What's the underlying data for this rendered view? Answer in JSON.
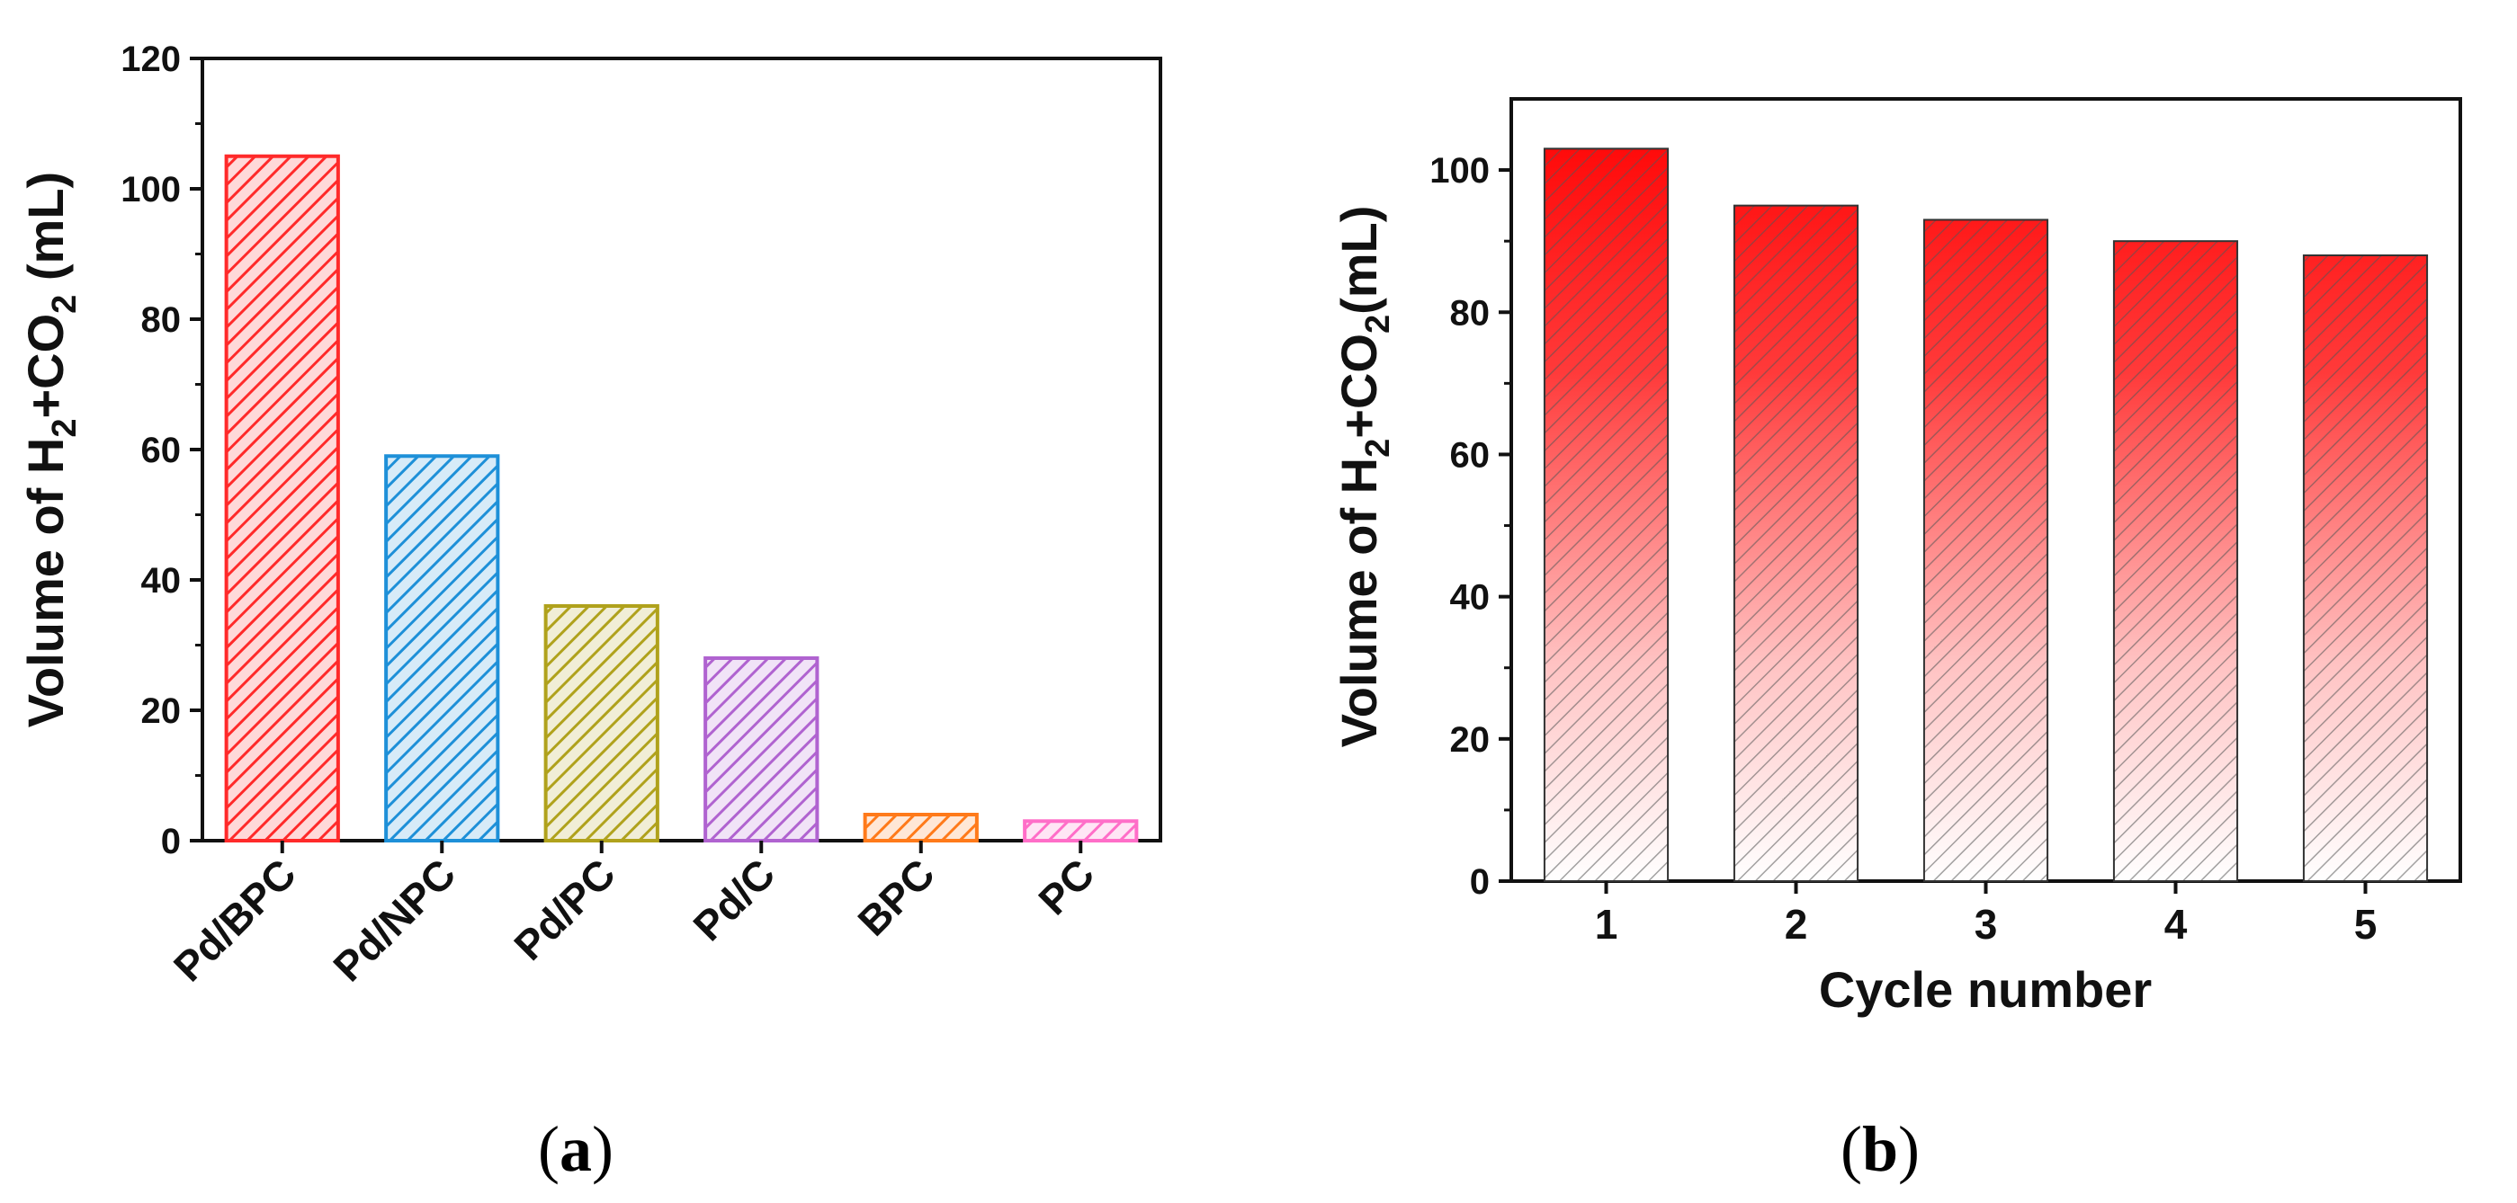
{
  "chart_data": [
    {
      "type": "bar",
      "panel": "a",
      "categories": [
        "Pd/BPC",
        "Pd/NPC",
        "Pd/PC",
        "Pd/C",
        "BPC",
        "PC"
      ],
      "values": [
        105,
        59,
        36,
        28,
        4,
        3
      ],
      "colors": [
        "#ff2a2a",
        "#1e90d8",
        "#b0a21c",
        "#b063d0",
        "#ff7a1a",
        "#ff6ec8"
      ],
      "title": "",
      "xlabel": "",
      "ylabel": {
        "prefix": "Volume of H",
        "sub1": "2",
        "mid": "+CO",
        "sub2": "2",
        "suffix": " (mL)"
      },
      "ylim": [
        0,
        120
      ],
      "yticks": [
        "0",
        "20",
        "40",
        "60",
        "80",
        "100",
        "120"
      ],
      "grid": false
    },
    {
      "type": "bar",
      "panel": "b",
      "categories": [
        "1",
        "2",
        "3",
        "4",
        "5"
      ],
      "values": [
        103,
        95,
        93,
        90,
        88
      ],
      "colors": [
        "#ff0000"
      ],
      "fill_style": "gradient red top to light bottom with grey hatching",
      "title": "",
      "xlabel": "Cycle number",
      "ylabel": {
        "prefix": "Volume of H",
        "sub1": "2",
        "mid": "+CO",
        "sub2": "2",
        "suffix": "(mL)"
      },
      "ylim": [
        0,
        110
      ],
      "yticks": [
        "0",
        "20",
        "40",
        "60",
        "80",
        "100"
      ],
      "grid": false
    }
  ],
  "captions": {
    "a": {
      "open": "(",
      "letter": "a",
      "close": ")"
    },
    "b": {
      "open": "(",
      "letter": "b",
      "close": ")"
    }
  }
}
